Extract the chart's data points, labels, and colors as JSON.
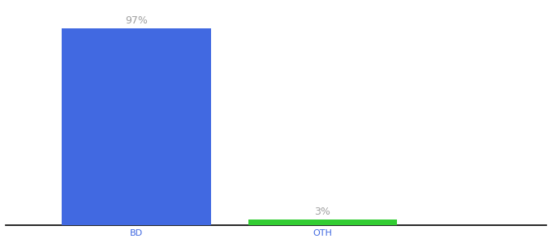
{
  "categories": [
    "BD",
    "OTH"
  ],
  "values": [
    97,
    3
  ],
  "bar_colors": [
    "#4169E1",
    "#32CD32"
  ],
  "label_texts": [
    "97%",
    "3%"
  ],
  "label_color": "#a0a0a0",
  "label_fontsize": 9,
  "tick_fontsize": 8,
  "tick_color": "#4169E1",
  "ylim": [
    0,
    108
  ],
  "background_color": "#ffffff",
  "bar_width": 0.8,
  "figsize": [
    6.8,
    3.0
  ],
  "dpi": 100,
  "spine_color": "#000000",
  "xlabel_color": "#4169E1",
  "x_positions": [
    1,
    2
  ],
  "xlim": [
    0.3,
    3.2
  ]
}
